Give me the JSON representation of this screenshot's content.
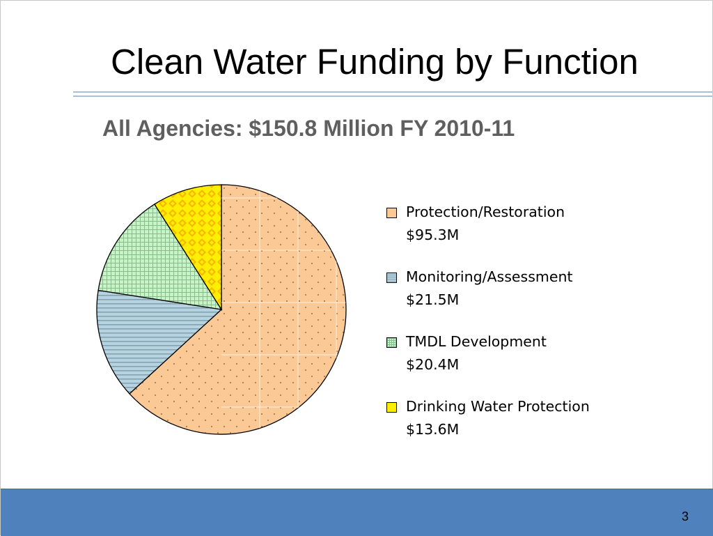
{
  "slide": {
    "title": "Clean Water Funding by Function",
    "page_number": "3"
  },
  "chart_data": {
    "type": "pie",
    "title": "All Agencies: $150.8 Million FY 2010-11",
    "unit": "$M",
    "categories": [
      "Protection/Restoration",
      "Monitoring/Assessment",
      "TMDL Development",
      "Drinking Water Protection"
    ],
    "values": [
      95.3,
      21.5,
      20.4,
      13.6
    ],
    "value_labels": [
      "$95.3M",
      "$21.5M",
      "$20.4M",
      "$13.6M"
    ],
    "colors": [
      "#fbc995",
      "#b4d3e3",
      "#c7f3c7",
      "#ffee00"
    ],
    "legend": "right"
  }
}
